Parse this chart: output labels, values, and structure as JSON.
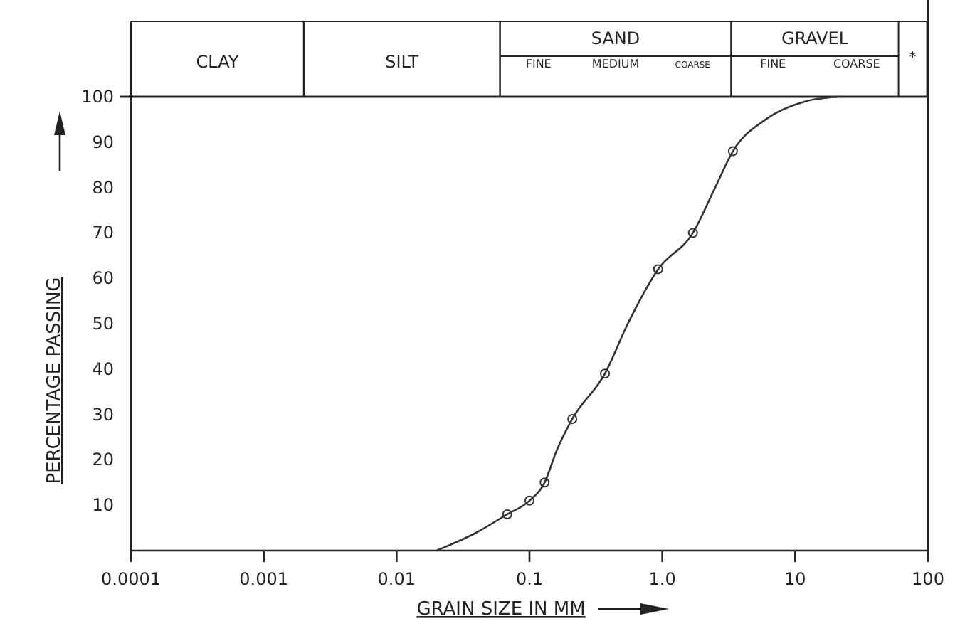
{
  "chart_data": {
    "type": "line",
    "xlabel": "GRAIN SIZE IN MM",
    "ylabel": "PERCENTAGE PASSING",
    "log": "x",
    "grid": false,
    "xlim": [
      0.0001,
      100
    ],
    "xticks": [
      0.0001,
      0.001,
      0.01,
      0.1,
      {
        "value": 1,
        "label": "1.0"
      },
      10,
      100
    ],
    "ylim": [
      0,
      100
    ],
    "yticks": [
      10,
      20,
      30,
      40,
      50,
      60,
      70,
      80,
      90,
      100
    ],
    "series": [
      {
        "color": "#333333",
        "marker": "none",
        "x": [
          0.02,
          0.04,
          0.068,
          0.1,
          0.13,
          0.16,
          0.21,
          0.37,
          0.55,
          0.93,
          1.7,
          2.5,
          3.4,
          6,
          12,
          21
        ],
        "values": [
          0,
          4,
          8,
          11,
          15,
          22,
          29,
          39,
          50,
          62,
          70,
          80,
          88,
          95,
          99,
          100
        ]
      },
      {
        "type": "scatter",
        "color": "#333333",
        "marker": "circle",
        "x": [
          0.068,
          0.1,
          0.13,
          0.21,
          0.37,
          0.93,
          1.7,
          3.4
        ],
        "values": [
          8,
          11,
          15,
          29,
          39,
          62,
          70,
          88
        ]
      }
    ],
    "annotations": [
      "CLAY",
      "SILT",
      "SAND",
      "FINE",
      "MEDIUM",
      "COARSE",
      "GRAVEL",
      "FINE",
      "COARSE",
      "*"
    ]
  }
}
